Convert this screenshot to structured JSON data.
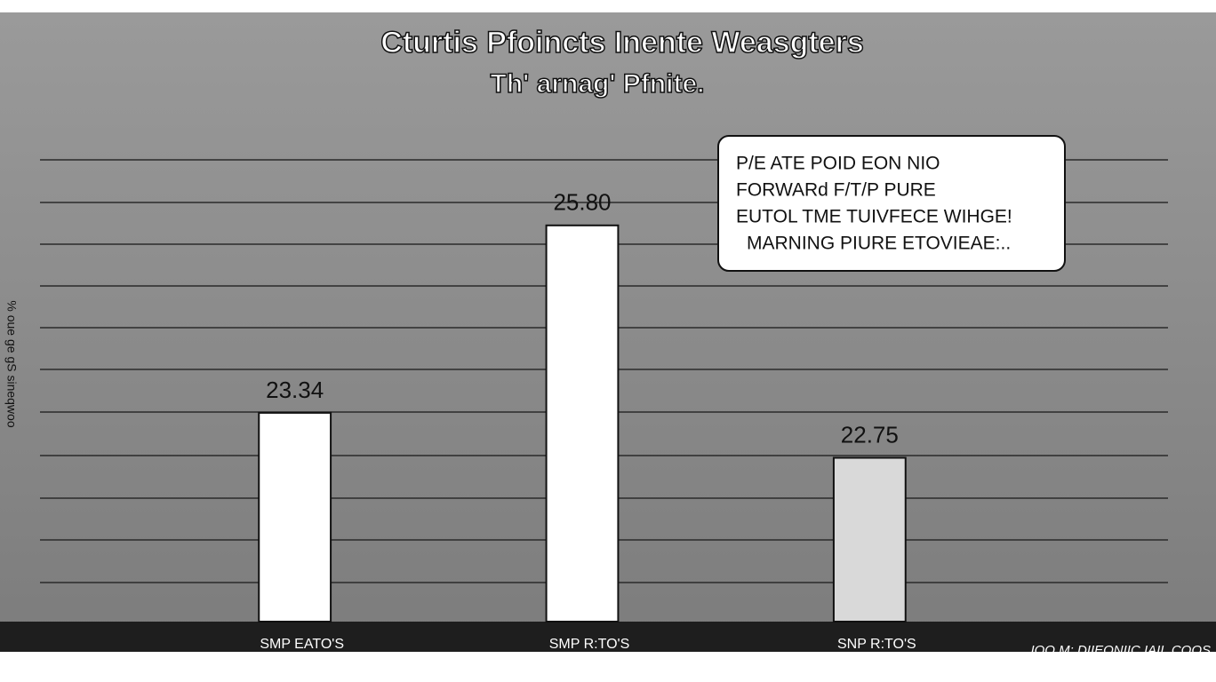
{
  "chart_data": {
    "type": "bar",
    "title": "Cturtis Pfoincts Inente Weasgters",
    "subtitle": "Th' arnag' Pfnite.",
    "y_label": "% oue ge gS sineqwoo",
    "annotation": [
      "P/E ATE POID EON NIO",
      "FORWARd F/T/P PURE",
      "EUTOL TME TUIVFECE WIHGE!",
      "MARNING PIURE ETOVIEAE:.."
    ],
    "footnote": "IOO M: DIIEONIIC IAIL.COOS",
    "categories": [
      "SMP EATO'S",
      "SMP R:TO'S",
      "SNP R:TO'S"
    ],
    "values": [
      23.34,
      25.8,
      22.75
    ],
    "value_labels": [
      "23.34",
      "25.80",
      "22.75"
    ],
    "colors": [
      "#ffffff",
      "#ffffff",
      "#d9d9d9"
    ],
    "ylim": [
      20.6,
      26.8
    ]
  }
}
